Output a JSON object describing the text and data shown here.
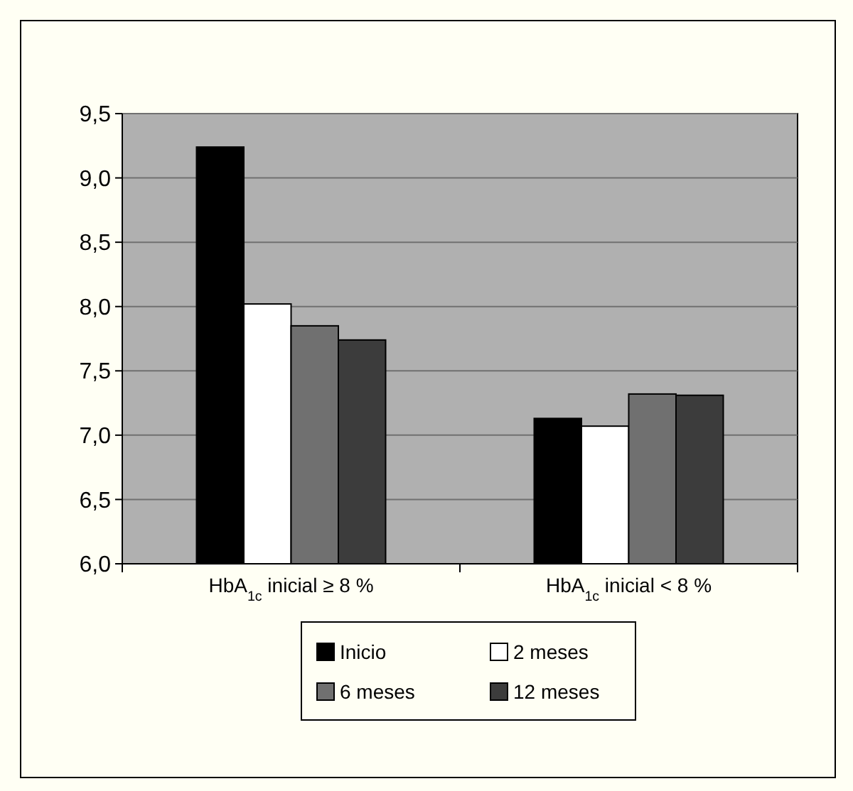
{
  "chart_data": {
    "type": "bar",
    "categories": [
      "HbA$_{1c}$ inicial ≥ 8 %",
      "HbA$_{1c}$ inicial < 8 %"
    ],
    "series": [
      {
        "name": "Inicio",
        "color": "#000000",
        "values": [
          9.24,
          7.13
        ]
      },
      {
        "name": "2 meses",
        "color": "#ffffff",
        "values": [
          8.02,
          7.07
        ]
      },
      {
        "name": "6 meses",
        "color": "#707070",
        "values": [
          7.85,
          7.32
        ]
      },
      {
        "name": "12 meses",
        "color": "#3c3c3c",
        "values": [
          7.74,
          7.31
        ]
      }
    ],
    "ylim": [
      6,
      9.5
    ],
    "yticks": [
      {
        "value": 6,
        "label": "6,0"
      },
      {
        "value": 6.5,
        "label": "6,5"
      },
      {
        "value": 7,
        "label": "7,0"
      },
      {
        "value": 7.5,
        "label": "7,5"
      },
      {
        "value": 8,
        "label": "8,0"
      },
      {
        "value": 8.5,
        "label": "8,5"
      },
      {
        "value": 9,
        "label": "9,0"
      },
      {
        "value": 9.5,
        "label": "9,5"
      }
    ],
    "grid": "y",
    "legend": "bottom"
  }
}
